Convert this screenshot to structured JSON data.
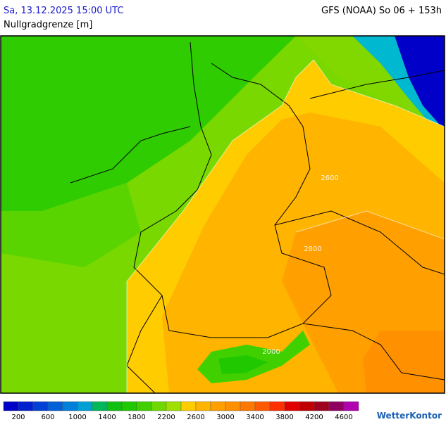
{
  "header": {
    "title": "Sa, 13.12.2025 15:00 UTC",
    "model": "GFS (NOAA) So 06 + 153h",
    "subtitle": "Nullgradgrenze [m]"
  },
  "map": {
    "contour_labels": [
      2600,
      2800,
      2000
    ]
  },
  "legend": {
    "colors": [
      "#0000c8",
      "#0020d0",
      "#0040d4",
      "#0060d8",
      "#0080d8",
      "#00a0d4",
      "#00b85a",
      "#10c010",
      "#20c800",
      "#40d000",
      "#70d800",
      "#a0e000",
      "#ffcc00",
      "#ffb400",
      "#ffa000",
      "#ff9000",
      "#ff7800",
      "#ff5a00",
      "#ff3000",
      "#e00000",
      "#c00000",
      "#a00020",
      "#900060",
      "#b000b0"
    ],
    "ticks": [
      200,
      600,
      1000,
      1400,
      1800,
      2200,
      2600,
      3000,
      3400,
      3800,
      4200,
      4600
    ]
  },
  "brand": "WetterKontor"
}
